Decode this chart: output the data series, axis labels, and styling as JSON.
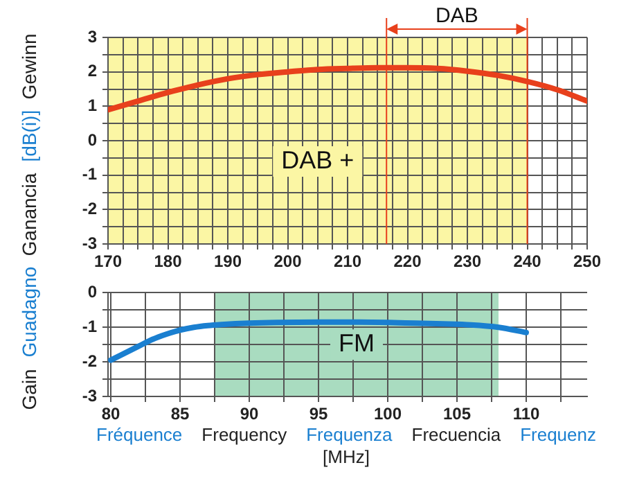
{
  "chart_data": [
    {
      "type": "line",
      "ylabel": "Gain Guadagno Ganancia [dB(i)] Gewinn",
      "x": [
        170,
        175,
        180,
        185,
        190,
        195,
        200,
        205,
        210,
        215,
        220,
        225,
        230,
        235,
        240,
        245,
        250
      ],
      "series": [
        {
          "color": "#e8401c",
          "values": [
            0.9,
            1.15,
            1.4,
            1.62,
            1.8,
            1.92,
            2.0,
            2.07,
            2.1,
            2.12,
            2.12,
            2.1,
            2.02,
            1.9,
            1.72,
            1.48,
            1.15
          ]
        }
      ],
      "xlim": [
        170,
        250
      ],
      "xticks": [
        170,
        {
          "value": 172.5,
          "label": null
        },
        {
          "value": 175,
          "label": null
        },
        {
          "value": 177.5,
          "label": null
        },
        180,
        {
          "value": 182.5,
          "label": null
        },
        {
          "value": 185,
          "label": null
        },
        {
          "value": 187.5,
          "label": null
        },
        190,
        {
          "value": 192.5,
          "label": null
        },
        {
          "value": 195,
          "label": null
        },
        {
          "value": 197.5,
          "label": null
        },
        200,
        {
          "value": 202.5,
          "label": null
        },
        {
          "value": 205,
          "label": null
        },
        {
          "value": 207.5,
          "label": null
        },
        210,
        {
          "value": 212.5,
          "label": null
        },
        {
          "value": 215,
          "label": null
        },
        {
          "value": 217.5,
          "label": null
        },
        220,
        {
          "value": 222.5,
          "label": null
        },
        {
          "value": 225,
          "label": null
        },
        {
          "value": 227.5,
          "label": null
        },
        230,
        {
          "value": 232.5,
          "label": null
        },
        {
          "value": 235,
          "label": null
        },
        {
          "value": 237.5,
          "label": null
        },
        240,
        {
          "value": 242.5,
          "label": null
        },
        {
          "value": 245,
          "label": null
        },
        {
          "value": 247.5,
          "label": null
        },
        250
      ],
      "ylim": [
        -3,
        3
      ],
      "yticks": [
        -3,
        {
          "value": -2.5,
          "label": null
        },
        -2,
        {
          "value": -1.5,
          "label": null
        },
        -1,
        {
          "value": -0.5,
          "label": null
        },
        0,
        {
          "value": 0.5,
          "label": null
        },
        1,
        {
          "value": 1.5,
          "label": null
        },
        2,
        {
          "value": 2.5,
          "label": null
        },
        3
      ],
      "bands": [
        {
          "axis": "x",
          "from": 170,
          "to": 240,
          "label": "DAB +",
          "color": "#fbf6a4"
        }
      ],
      "ref_lines": [
        {
          "axis": "x",
          "value": 216.5,
          "color": "#e8401c"
        },
        {
          "axis": "x",
          "value": 240,
          "color": "#e8401c"
        }
      ],
      "annotations": [
        "DAB"
      ],
      "grid": true,
      "legend": false,
      "marker": "none",
      "line_style": "solid"
    },
    {
      "type": "line",
      "xlabel": "Fréquence Frequency Frequenza Frecuencia Frequenz\n[MHz]",
      "x": [
        80,
        81,
        82,
        83,
        84,
        85,
        86,
        87,
        88,
        90,
        92,
        95,
        98,
        100,
        102,
        104,
        106,
        108,
        110
      ],
      "series": [
        {
          "color": "#1a7fd0",
          "values": [
            -1.95,
            -1.75,
            -1.55,
            -1.35,
            -1.2,
            -1.08,
            -1.0,
            -0.95,
            -0.92,
            -0.88,
            -0.86,
            -0.85,
            -0.85,
            -0.86,
            -0.88,
            -0.9,
            -0.93,
            -1.0,
            -1.15
          ]
        }
      ],
      "xlim": [
        79.8,
        114.4
      ],
      "xticks": [
        80,
        {
          "value": 82.5,
          "label": null
        },
        85,
        {
          "value": 87.5,
          "label": null
        },
        90,
        {
          "value": 92.5,
          "label": null
        },
        95,
        {
          "value": 97.5,
          "label": null
        },
        100,
        {
          "value": 102.5,
          "label": null
        },
        105,
        {
          "value": 107.5,
          "label": null
        },
        110,
        {
          "value": 112.5,
          "label": null
        }
      ],
      "ylim": [
        -3,
        0
      ],
      "yticks": [
        -3,
        {
          "value": -2.5,
          "label": null
        },
        -2,
        {
          "value": -1.5,
          "label": null
        },
        -1,
        {
          "value": -0.5,
          "label": null
        },
        0
      ],
      "bands": [
        {
          "axis": "x",
          "from": 87.5,
          "to": 108,
          "label": "FM",
          "color": "#a9dcc0"
        }
      ],
      "grid": true,
      "legend": false,
      "marker": "none",
      "line_style": "solid"
    }
  ]
}
